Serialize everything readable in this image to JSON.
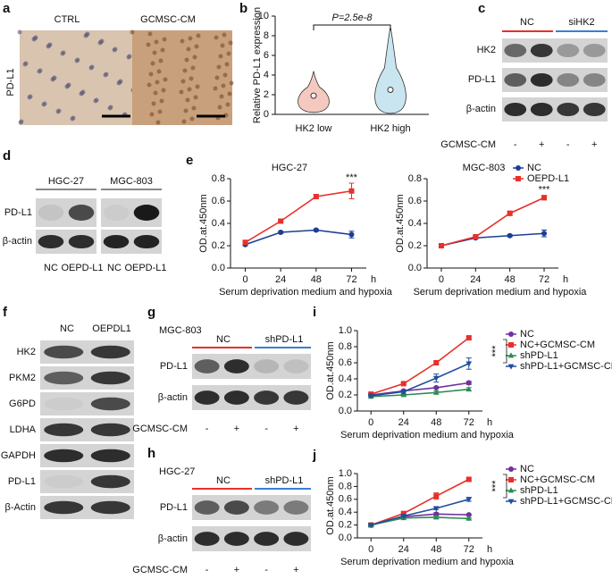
{
  "panels": {
    "a": {
      "label": "a",
      "groups": [
        "CTRL",
        "GCMSC-CM"
      ],
      "row": "PD-L1"
    },
    "c": {
      "label": "c",
      "groups": [
        "NC",
        "siHK2"
      ],
      "rows": [
        "HK2",
        "PD-L1",
        "β-actin"
      ],
      "treatment": "GCMSC-CM",
      "signs": [
        "-",
        "+",
        "-",
        "+"
      ]
    },
    "d": {
      "label": "d",
      "cells": [
        "HGC-27",
        "MGC-803"
      ],
      "rows": [
        "PD-L1",
        "β-actin"
      ],
      "lanes": [
        "NC",
        "OEPD-L1",
        "NC",
        "OEPD-L1"
      ]
    },
    "f": {
      "label": "f",
      "groups": [
        "NC",
        "OEPDL1"
      ],
      "rows": [
        "HK2",
        "PKM2",
        "G6PD",
        "LDHA",
        "GAPDH",
        "PD-L1",
        "β-Actin"
      ]
    },
    "g": {
      "label": "g",
      "cell": "MGC-803",
      "groups": [
        "NC",
        "shPD-L1"
      ],
      "rows": [
        "PD-L1",
        "β-actin"
      ],
      "treatment": "GCMSC-CM",
      "signs": [
        "-",
        "+",
        "-",
        "+"
      ]
    },
    "h": {
      "label": "h",
      "cell": "HGC-27",
      "groups": [
        "NC",
        "shPD-L1"
      ],
      "rows": [
        "PD-L1",
        "β-actin"
      ],
      "treatment": "GCMSC-CM",
      "signs": [
        "-",
        "+",
        "-",
        "+"
      ]
    }
  },
  "chart_data": [
    {
      "type": "violin",
      "panel_label": "b",
      "y_label": "Relative PD-L1 expression",
      "annotation": "P=2.5e-8",
      "categories": [
        "HK2 low",
        "HK2 high"
      ],
      "values": [
        1.9,
        2.5
      ],
      "min": [
        0.2,
        0.1
      ],
      "max": [
        4.4,
        8.9
      ],
      "colors": [
        "#f4c9bf",
        "#c9e6f0"
      ],
      "ylim": [
        0,
        10
      ],
      "yticks": [
        0,
        2,
        4,
        6,
        8,
        10
      ]
    },
    {
      "type": "line",
      "panel_label": "e",
      "title": "HGC-27",
      "x_label": "Serum deprivation medium and hypoxia",
      "x_unit": "h",
      "y_label": "OD.at.450nm",
      "annotation": "***",
      "x": [
        0,
        24,
        48,
        72
      ],
      "xlim": [
        -10,
        82
      ],
      "xticks": [
        0,
        24,
        48,
        72
      ],
      "ylim": [
        0,
        0.8
      ],
      "yticks": [
        {
          "value": 0,
          "label": "0.0"
        },
        0.2,
        0.4,
        0.6,
        0.8
      ],
      "series": [
        {
          "name": "NC",
          "color": "#1c3f94",
          "marker": "circle",
          "values": [
            0.21,
            0.32,
            0.34,
            0.3
          ],
          "errors": [
            0.01,
            0.01,
            0.01,
            0.03
          ]
        },
        {
          "name": "OEPD-L1",
          "color": "#e8302a",
          "marker": "square",
          "values": [
            0.23,
            0.42,
            0.64,
            0.69
          ],
          "errors": [
            0.01,
            0.01,
            0.02,
            0.07
          ]
        }
      ]
    },
    {
      "type": "line",
      "title": "MGC-803",
      "x_label": "Serum deprivation medium and hypoxia",
      "x_unit": "h",
      "y_label": "OD.at.450nm",
      "annotation": "***",
      "legend": "upper right",
      "x": [
        0,
        24,
        48,
        72
      ],
      "xlim": [
        -10,
        82
      ],
      "xticks": [
        0,
        24,
        48,
        72
      ],
      "ylim": [
        0,
        0.8
      ],
      "yticks": [
        {
          "value": 0,
          "label": "0.0"
        },
        0.2,
        0.4,
        0.6,
        0.8
      ],
      "series": [
        {
          "name": "NC",
          "color": "#1c3f94",
          "marker": "circle",
          "values": [
            0.2,
            0.27,
            0.29,
            0.31
          ],
          "errors": [
            0.01,
            0.01,
            0.01,
            0.03
          ]
        },
        {
          "name": "OEPD-L1",
          "color": "#e8302a",
          "marker": "square",
          "values": [
            0.2,
            0.28,
            0.49,
            0.63
          ],
          "errors": [
            0.01,
            0.01,
            0.02,
            0.02
          ]
        }
      ]
    },
    {
      "type": "line",
      "panel_label": "i",
      "x_label": "Serum deprivation medium and hypoxia",
      "x_unit": "h",
      "y_label": "OD.at.450nm",
      "annotation": "***",
      "legend": "right",
      "x": [
        0,
        24,
        48,
        72
      ],
      "xlim": [
        -10,
        82
      ],
      "xticks": [
        0,
        24,
        48,
        72
      ],
      "ylim": [
        0,
        1.0
      ],
      "yticks": [
        {
          "value": 0,
          "label": "0.0"
        },
        0.2,
        0.4,
        0.6,
        0.8,
        {
          "value": 1.0,
          "label": "1.0"
        }
      ],
      "series": [
        {
          "name": "NC",
          "color": "#7030a0",
          "marker": "circle",
          "values": [
            0.2,
            0.25,
            0.29,
            0.35
          ],
          "errors": [
            0.01,
            0.01,
            0.01,
            0.02
          ]
        },
        {
          "name": "NC+GCMSC-CM",
          "color": "#e8302a",
          "marker": "square",
          "values": [
            0.21,
            0.34,
            0.6,
            0.91
          ],
          "errors": [
            0.01,
            0.01,
            0.02,
            0.02
          ]
        },
        {
          "name": "shPD-L1",
          "color": "#2e8b57",
          "marker": "triangle",
          "values": [
            0.18,
            0.2,
            0.23,
            0.27
          ],
          "errors": [
            0.01,
            0.01,
            0.02,
            0.02
          ]
        },
        {
          "name": "shPD-L1+GCMSC-CM",
          "color": "#1f4e9c",
          "marker": "triangle-down",
          "values": [
            0.19,
            0.24,
            0.41,
            0.59
          ],
          "errors": [
            0.01,
            0.02,
            0.05,
            0.07
          ]
        }
      ]
    },
    {
      "type": "line",
      "panel_label": "j",
      "x_label": "Serum deprivation medium and hypoxia",
      "x_unit": "h",
      "y_label": "OD.at.450nm",
      "annotation": "***",
      "legend": "right",
      "x": [
        0,
        24,
        48,
        72
      ],
      "xlim": [
        -10,
        82
      ],
      "xticks": [
        0,
        24,
        48,
        72
      ],
      "ylim": [
        0,
        1.0
      ],
      "yticks": [
        {
          "value": 0,
          "label": "0.0"
        },
        0.2,
        0.4,
        0.6,
        0.8,
        {
          "value": 1.0,
          "label": "1.0"
        }
      ],
      "series": [
        {
          "name": "NC",
          "color": "#7030a0",
          "marker": "circle",
          "values": [
            0.2,
            0.33,
            0.37,
            0.36
          ],
          "errors": [
            0.01,
            0.01,
            0.02,
            0.01
          ]
        },
        {
          "name": "NC+GCMSC-CM",
          "color": "#e8302a",
          "marker": "square",
          "values": [
            0.2,
            0.38,
            0.65,
            0.91
          ],
          "errors": [
            0.01,
            0.02,
            0.05,
            0.02
          ]
        },
        {
          "name": "shPD-L1",
          "color": "#2e8b57",
          "marker": "triangle",
          "values": [
            0.2,
            0.31,
            0.32,
            0.3
          ],
          "errors": [
            0.01,
            0.01,
            0.02,
            0.01
          ]
        },
        {
          "name": "shPD-L1+GCMSC-CM",
          "color": "#1f4e9c",
          "marker": "triangle-down",
          "values": [
            0.2,
            0.34,
            0.46,
            0.6
          ],
          "errors": [
            0.01,
            0.01,
            0.02,
            0.03
          ]
        }
      ]
    }
  ]
}
